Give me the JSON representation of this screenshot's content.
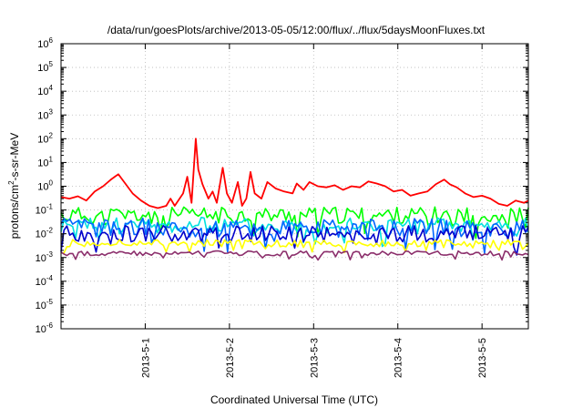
{
  "chart_data": {
    "type": "line",
    "title": "/data/run/goesPlots/archive/2013-05-05/12:00/flux/../flux/5daysMoonFluxes.txt",
    "xlabel": "Coordinated Universal Time (UTC)",
    "ylabel": {
      "base": "protons/cm",
      "sup": "2",
      "rest": "-s-sr-MeV"
    },
    "yscale": "log",
    "ylim": [
      1e-06,
      1000000.0
    ],
    "xlim": [
      0,
      5.55
    ],
    "grid": true,
    "legend": "none",
    "y_ticks": [
      {
        "base": "10",
        "exp": "-6",
        "value": 1e-06
      },
      {
        "base": "10",
        "exp": "-5",
        "value": 1e-05
      },
      {
        "base": "10",
        "exp": "-4",
        "value": 0.0001
      },
      {
        "base": "10",
        "exp": "-3",
        "value": 0.001
      },
      {
        "base": "10",
        "exp": "-2",
        "value": 0.01
      },
      {
        "base": "10",
        "exp": "-1",
        "value": 0.1
      },
      {
        "base": "10",
        "exp": "0",
        "value": 1.0
      },
      {
        "base": "10",
        "exp": "1",
        "value": 10.0
      },
      {
        "base": "10",
        "exp": "2",
        "value": 100.0
      },
      {
        "base": "10",
        "exp": "3",
        "value": 1000.0
      },
      {
        "base": "10",
        "exp": "4",
        "value": 10000.0
      },
      {
        "base": "10",
        "exp": "5",
        "value": 100000.0
      },
      {
        "base": "10",
        "exp": "6",
        "value": 1000000.0
      }
    ],
    "x_ticks": [
      {
        "label": "2013-5-1",
        "value": 1
      },
      {
        "label": "2013-5-2",
        "value": 2
      },
      {
        "label": "2013-5-3",
        "value": 3
      },
      {
        "label": "2013-5-4",
        "value": 4
      },
      {
        "label": "2013-5-5",
        "value": 5
      }
    ],
    "series": [
      {
        "color": "#ff0000",
        "points": [
          [
            0,
            0.35
          ],
          [
            0.1,
            0.3
          ],
          [
            0.2,
            0.38
          ],
          [
            0.3,
            0.25
          ],
          [
            0.4,
            0.6
          ],
          [
            0.5,
            1.0
          ],
          [
            0.6,
            2.0
          ],
          [
            0.68,
            3.2
          ],
          [
            0.75,
            1.5
          ],
          [
            0.85,
            0.5
          ],
          [
            0.95,
            0.25
          ],
          [
            1.05,
            0.15
          ],
          [
            1.15,
            0.12
          ],
          [
            1.25,
            0.15
          ],
          [
            1.3,
            0.3
          ],
          [
            1.35,
            0.15
          ],
          [
            1.45,
            0.5
          ],
          [
            1.5,
            2.5
          ],
          [
            1.55,
            0.2
          ],
          [
            1.6,
            100
          ],
          [
            1.63,
            5
          ],
          [
            1.68,
            1.2
          ],
          [
            1.75,
            0.3
          ],
          [
            1.8,
            0.6
          ],
          [
            1.85,
            0.2
          ],
          [
            1.92,
            6
          ],
          [
            1.97,
            0.5
          ],
          [
            2.03,
            0.2
          ],
          [
            2.1,
            1.5
          ],
          [
            2.15,
            0.15
          ],
          [
            2.2,
            0.3
          ],
          [
            2.25,
            4
          ],
          [
            2.3,
            0.5
          ],
          [
            2.38,
            0.3
          ],
          [
            2.45,
            1.5
          ],
          [
            2.55,
            0.8
          ],
          [
            2.65,
            0.6
          ],
          [
            2.75,
            0.5
          ],
          [
            2.8,
            1.3
          ],
          [
            2.88,
            0.7
          ],
          [
            2.95,
            1.5
          ],
          [
            3.05,
            1.0
          ],
          [
            3.15,
            0.9
          ],
          [
            3.25,
            1.1
          ],
          [
            3.35,
            0.7
          ],
          [
            3.45,
            1.0
          ],
          [
            3.55,
            0.9
          ],
          [
            3.65,
            1.6
          ],
          [
            3.75,
            1.3
          ],
          [
            3.85,
            1.0
          ],
          [
            3.95,
            0.6
          ],
          [
            4.05,
            0.7
          ],
          [
            4.15,
            0.4
          ],
          [
            4.25,
            0.5
          ],
          [
            4.35,
            0.6
          ],
          [
            4.45,
            1.2
          ],
          [
            4.55,
            1.9
          ],
          [
            4.62,
            1.2
          ],
          [
            4.7,
            0.9
          ],
          [
            4.8,
            0.5
          ],
          [
            4.9,
            0.35
          ],
          [
            5.0,
            0.4
          ],
          [
            5.1,
            0.3
          ],
          [
            5.2,
            0.18
          ],
          [
            5.3,
            0.15
          ],
          [
            5.4,
            0.25
          ],
          [
            5.5,
            0.2
          ],
          [
            5.55,
            0.25
          ]
        ]
      },
      {
        "color": "#00ff00",
        "level": 0.06,
        "spread": 0.35,
        "seed": 11
      },
      {
        "color": "#00e0e0",
        "level": 0.022,
        "spread": 0.35,
        "seed": 23
      },
      {
        "color": "#0066ff",
        "level": 0.018,
        "spread": 0.4,
        "seed": 37
      },
      {
        "color": "#0000cc",
        "level": 0.01,
        "spread": 0.35,
        "seed": 53
      },
      {
        "color": "#ffff00",
        "level": 0.004,
        "spread": 0.15,
        "seed": 71
      },
      {
        "color": "#8b2e6b",
        "level": 0.0015,
        "spread": 0.1,
        "seed": 89
      }
    ]
  }
}
